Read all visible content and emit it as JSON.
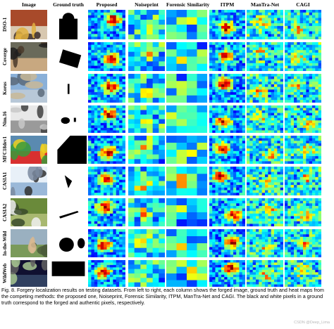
{
  "columns": [
    "Image",
    "Ground truth",
    "Proposed",
    "Noiseprint",
    "Forensic Similarity",
    "ITPM",
    "ManTra-Net",
    "CAGI"
  ],
  "rows": [
    "DSO-1",
    "Coverge",
    "Korus",
    "Nim.16",
    "MFC18dev1",
    "CASIA1",
    "CASIA2",
    "In-the-Wild",
    "WildWeb"
  ],
  "caption": "Fig. 8. Forgery localization results on testing datasets. From left to right, each column shows the forged image, ground truth and heat maps from the competing methods: the proposed one, Noiseprint, Forensic Similarity, ITPM, ManTra-Net and CAGI. The black and white pixels in a ground truth correspond to the forged and authentic pixels, respectively.",
  "watermark": "CSDN @Deep_Lima",
  "colors": {
    "heat_low": "#1a1ab5",
    "heat_mid": "#28c8c8",
    "heat_high": "#e01818",
    "gt_black": "#000000",
    "gt_white": "#ffffff"
  }
}
